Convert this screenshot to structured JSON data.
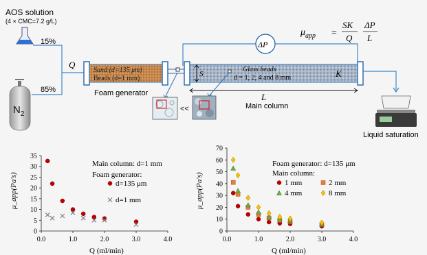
{
  "schematic": {
    "aos_title": "AOS solution",
    "aos_conc": "(4 × CMC=7.2 g/L)",
    "aos_pct": "15%",
    "n2_pct": "85%",
    "n2_label": "N",
    "n2_sub": "2",
    "q_label": "Q",
    "dp_label": "ΔP",
    "mu_label": "μ",
    "mu_sub": "app",
    "eq_num1": "SK",
    "eq_den1": "Q",
    "eq_num2": "ΔP",
    "eq_den2": "L",
    "sand_label": "Sand (d=135 μm)",
    "beads_label": "Beads (d=1 mm)",
    "foam_gen_label": "Foam generator",
    "glass_beads_label": "Glass beads",
    "glass_sizes": "d = 1, 2, 4 and 8 mm",
    "k_label": "K",
    "s_label": "S",
    "l_label": "L",
    "main_col_label": "Main column",
    "zoom_symbol": "<<",
    "liquid_label": "Liquid saturation"
  },
  "chart_data": [
    {
      "type": "scatter",
      "title": "",
      "xlabel": "Q (ml/min)",
      "ylabel": "μ_app(Pa's)",
      "xlim": [
        0,
        4
      ],
      "ylim": [
        0,
        35
      ],
      "xticks": [
        "0.0",
        "1.0",
        "2.0",
        "3.0",
        "4.0"
      ],
      "yticks": [
        "0",
        "5",
        "10",
        "15",
        "20",
        "25",
        "30",
        "35"
      ],
      "legend_title1": "Main column: d=1 mm",
      "legend_title2": "Foam generator:",
      "legend_position": "top-right",
      "series": [
        {
          "name": "d=135 μm",
          "marker": "circle",
          "color": "#c00000",
          "x": [
            0.2,
            0.35,
            0.67,
            1.0,
            1.33,
            1.67,
            2.0,
            3.0
          ],
          "y": [
            32.5,
            22,
            14,
            10,
            8,
            6.5,
            5.8,
            4.3
          ]
        },
        {
          "name": "d=1 mm",
          "marker": "x",
          "color": "#7f7f7f",
          "x": [
            0.2,
            0.35,
            0.67,
            1.0,
            1.33,
            1.67,
            2.0,
            3.0
          ],
          "y": [
            7.5,
            6,
            7,
            8.5,
            6,
            5,
            5,
            3
          ]
        }
      ]
    },
    {
      "type": "scatter",
      "title": "",
      "xlabel": "Q (ml/min)",
      "ylabel": "μ_app(Pa's)",
      "xlim": [
        0,
        4
      ],
      "ylim": [
        0,
        70
      ],
      "xticks": [
        "0.0",
        "1.0",
        "2.0",
        "3.0",
        "4.0"
      ],
      "yticks": [
        "0",
        "10",
        "20",
        "30",
        "40",
        "50",
        "60",
        "70"
      ],
      "legend_title1": "Foam generator: d=135 μm",
      "legend_title2": "Main column:",
      "legend_position": "top-right",
      "series": [
        {
          "name": "1 mm",
          "marker": "circle",
          "color": "#c00000",
          "x": [
            0.2,
            0.35,
            0.67,
            1.0,
            1.33,
            1.67,
            2.0,
            3.0
          ],
          "y": [
            32,
            21,
            14,
            10,
            7.5,
            6.5,
            6,
            4
          ]
        },
        {
          "name": "2 mm",
          "marker": "square",
          "color": "#ed7d31",
          "x": [
            0.2,
            0.35,
            0.67,
            1.0,
            1.33,
            1.67,
            2.0,
            3.0
          ],
          "y": [
            41,
            31,
            20,
            14,
            11,
            9,
            8,
            5.5
          ]
        },
        {
          "name": "4 mm",
          "marker": "triangle",
          "color": "#70ad47",
          "x": [
            0.2,
            0.35,
            0.67,
            1.0,
            1.33,
            1.67,
            2.0,
            3.0
          ],
          "y": [
            53,
            34,
            22,
            16,
            12,
            10,
            9,
            6
          ]
        },
        {
          "name": "8 mm",
          "marker": "diamond",
          "color": "#ffc000",
          "x": [
            0.2,
            0.35,
            0.67,
            1.0,
            1.33,
            1.67,
            2.0,
            3.0
          ],
          "y": [
            60,
            47,
            28,
            20,
            15,
            12,
            10.5,
            7
          ]
        }
      ]
    }
  ]
}
